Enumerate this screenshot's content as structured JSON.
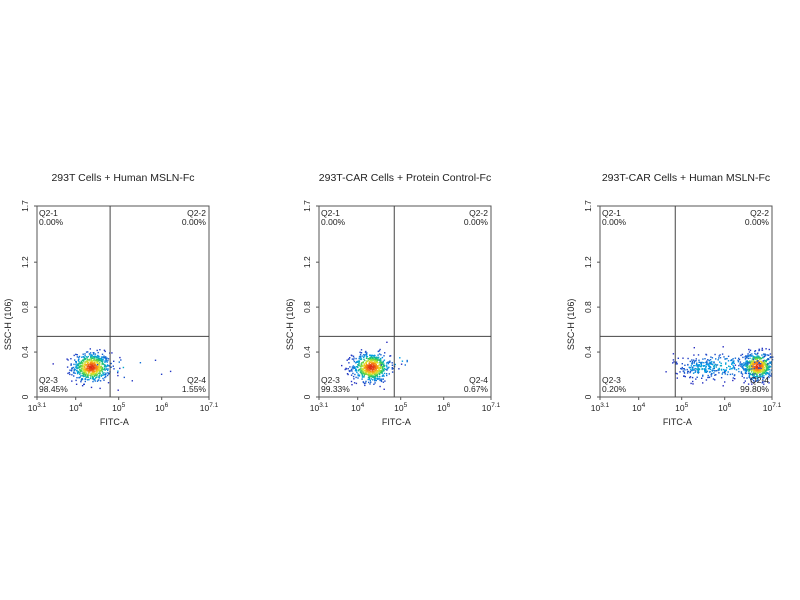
{
  "chart_data": [
    {
      "type": "scatter",
      "title": "293T Cells + Human MSLN-Fc",
      "xlabel": "FITC-A",
      "ylabel": "SSC-H (10^6)",
      "x_scale": "log",
      "xlim": [
        3.1,
        7.1
      ],
      "ylim": [
        0,
        1.7
      ],
      "x_tick_labels": [
        {
          "value": 3.1,
          "base": "10",
          "exp": "3.1"
        },
        {
          "value": 4,
          "base": "10",
          "exp": "4"
        },
        {
          "value": 5,
          "base": "10",
          "exp": "5"
        },
        {
          "value": 6,
          "base": "10",
          "exp": "6"
        },
        {
          "value": 7.1,
          "base": "10",
          "exp": "7.1"
        }
      ],
      "y_ticks": [
        0,
        0.4,
        0.8,
        1.2,
        1.7
      ],
      "gate": {
        "x": 4.8,
        "y": 0.54
      },
      "quadrants": [
        {
          "name": "Q2-1",
          "value": "0.00%",
          "corner": "top-left"
        },
        {
          "name": "Q2-2",
          "value": "0.00%",
          "corner": "top-right"
        },
        {
          "name": "Q2-3",
          "value": "98.45%",
          "corner": "bottom-left"
        },
        {
          "name": "Q2-4",
          "value": "1.55%",
          "corner": "bottom-right"
        }
      ],
      "populations": [
        {
          "cx": 4.35,
          "cy": 0.27,
          "sx": 0.22,
          "sy": 0.065,
          "n": 620
        },
        {
          "cx": 5.2,
          "cy": 0.26,
          "sx": 0.45,
          "sy": 0.05,
          "n": 14
        }
      ]
    },
    {
      "type": "scatter",
      "title": "293T-CAR Cells + Protein Control-Fc",
      "xlabel": "FITC-A",
      "ylabel": "SSC-H (10^6)",
      "x_scale": "log",
      "xlim": [
        3.1,
        7.1
      ],
      "ylim": [
        0,
        1.7
      ],
      "x_tick_labels": [
        {
          "value": 3.1,
          "base": "10",
          "exp": "3.1"
        },
        {
          "value": 4,
          "base": "10",
          "exp": "4"
        },
        {
          "value": 5,
          "base": "10",
          "exp": "5"
        },
        {
          "value": 6,
          "base": "10",
          "exp": "6"
        },
        {
          "value": 7.1,
          "base": "10",
          "exp": "7.1"
        }
      ],
      "y_ticks": [
        0,
        0.4,
        0.8,
        1.2,
        1.7
      ],
      "gate": {
        "x": 4.85,
        "y": 0.54
      },
      "quadrants": [
        {
          "name": "Q2-1",
          "value": "0.00%",
          "corner": "top-left"
        },
        {
          "name": "Q2-2",
          "value": "0.00%",
          "corner": "top-right"
        },
        {
          "name": "Q2-3",
          "value": "99.33%",
          "corner": "bottom-left"
        },
        {
          "name": "Q2-4",
          "value": "0.67%",
          "corner": "bottom-right"
        }
      ],
      "populations": [
        {
          "cx": 4.3,
          "cy": 0.27,
          "sx": 0.22,
          "sy": 0.065,
          "n": 620
        },
        {
          "cx": 4.9,
          "cy": 0.33,
          "sx": 0.2,
          "sy": 0.05,
          "n": 8
        }
      ]
    },
    {
      "type": "scatter",
      "title": "293T-CAR Cells + Human MSLN-Fc",
      "xlabel": "FITC-A",
      "ylabel": "SSC-H (10^6)",
      "x_scale": "log",
      "xlim": [
        3.1,
        7.1
      ],
      "ylim": [
        0,
        1.7
      ],
      "x_tick_labels": [
        {
          "value": 3.1,
          "base": "10",
          "exp": "3.1"
        },
        {
          "value": 4,
          "base": "10",
          "exp": "4"
        },
        {
          "value": 5,
          "base": "10",
          "exp": "5"
        },
        {
          "value": 6,
          "base": "10",
          "exp": "6"
        },
        {
          "value": 7.1,
          "base": "10",
          "exp": "7.1"
        }
      ],
      "y_ticks": [
        0,
        0.4,
        0.8,
        1.2,
        1.7
      ],
      "gate": {
        "x": 4.85,
        "y": 0.54
      },
      "quadrants": [
        {
          "name": "Q2-1",
          "value": "0.00%",
          "corner": "top-left"
        },
        {
          "name": "Q2-2",
          "value": "0.00%",
          "corner": "top-right"
        },
        {
          "name": "Q2-3",
          "value": "0.20%",
          "corner": "bottom-left"
        },
        {
          "name": "Q2-4",
          "value": "99.80%",
          "corner": "bottom-right"
        }
      ],
      "populations": [
        {
          "cx": 6.75,
          "cy": 0.28,
          "sx": 0.18,
          "sy": 0.06,
          "n": 520
        },
        {
          "cx": 5.9,
          "cy": 0.28,
          "sx": 0.55,
          "sy": 0.06,
          "n": 260
        },
        {
          "cx": 5.4,
          "cy": 0.26,
          "sx": 0.3,
          "sy": 0.05,
          "n": 90
        }
      ]
    }
  ]
}
